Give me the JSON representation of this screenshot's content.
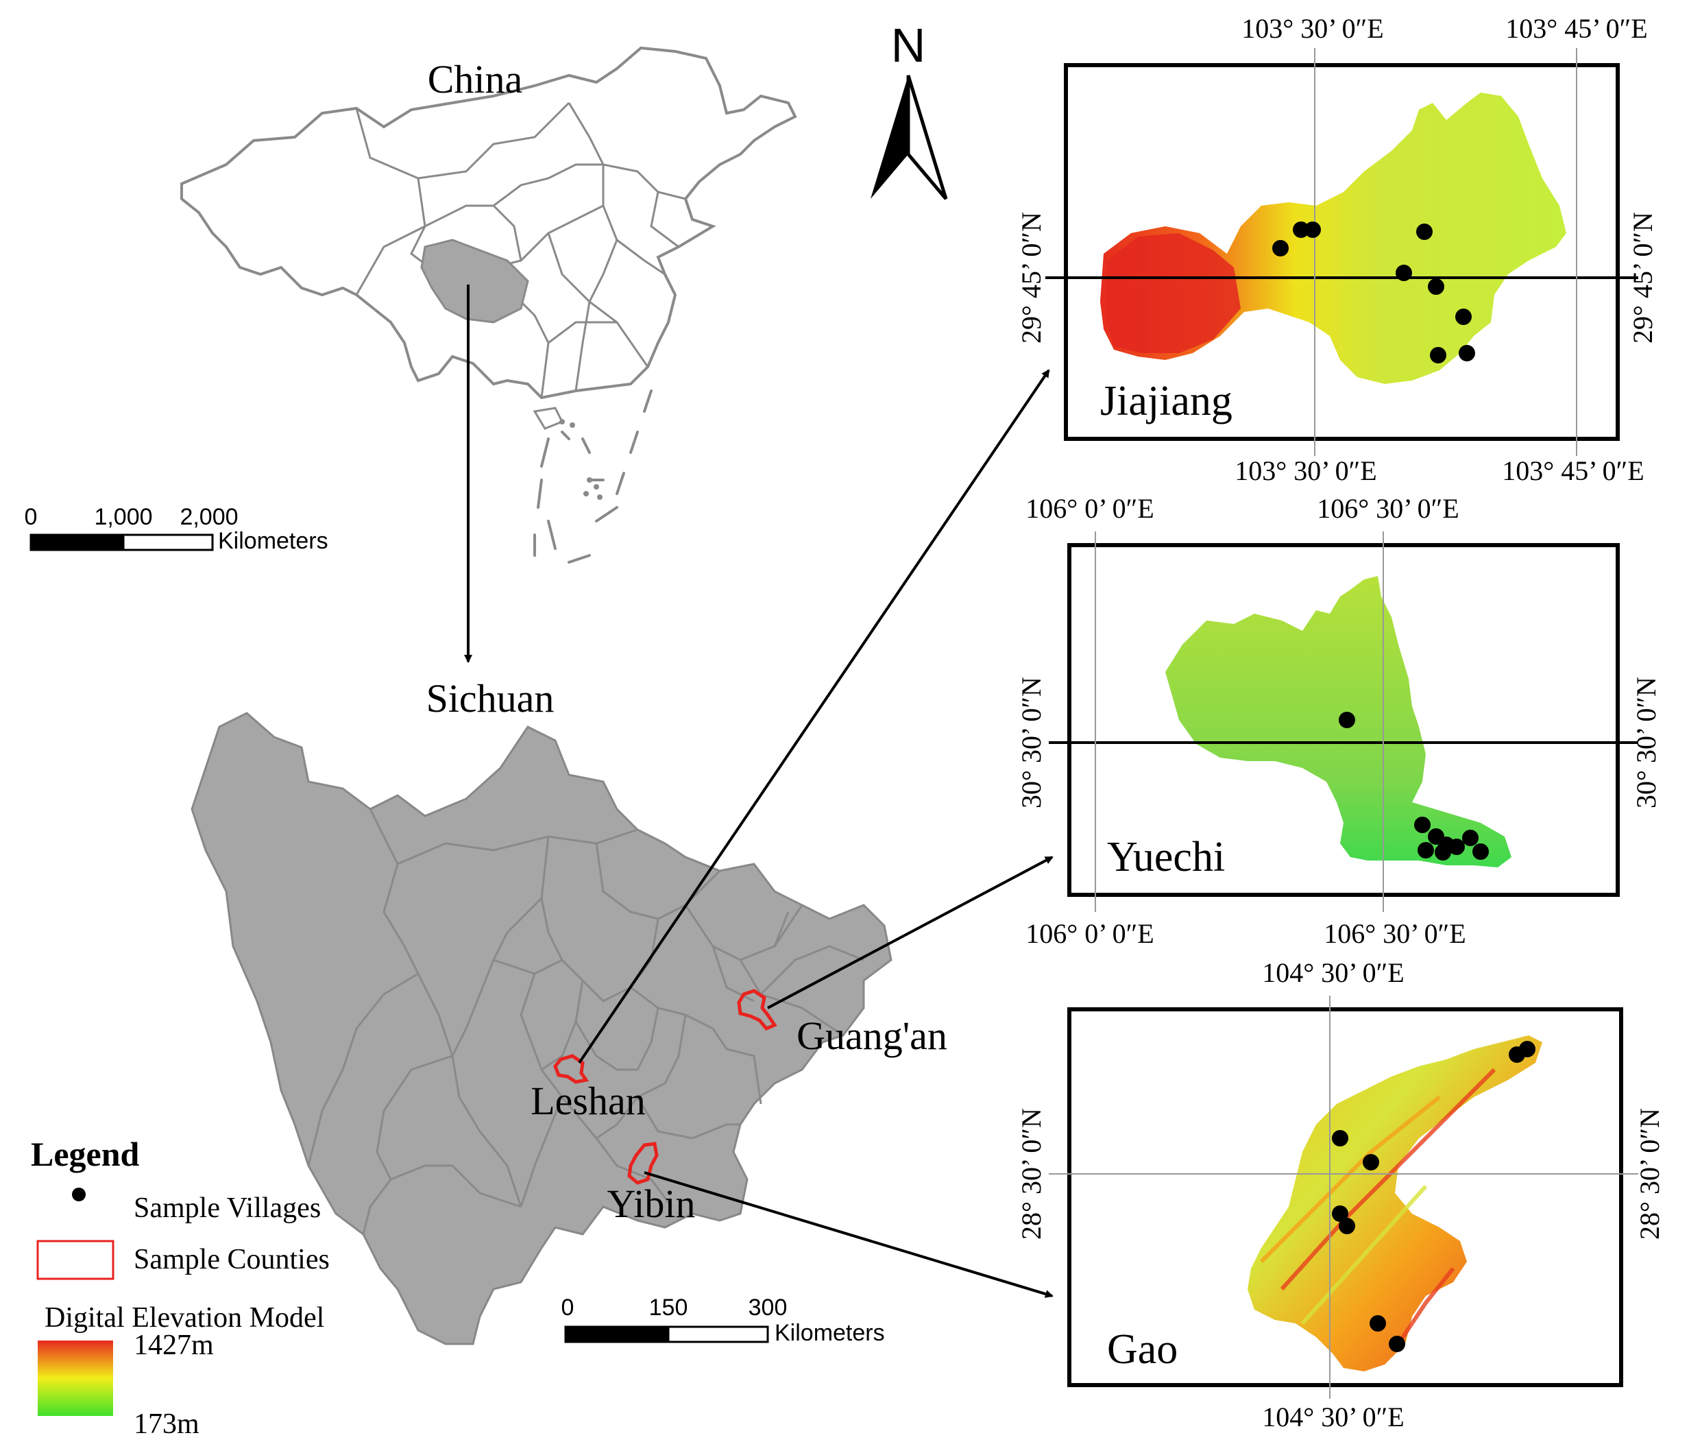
{
  "titles": {
    "china": "China",
    "sichuan": "Sichuan"
  },
  "north_arrow": {
    "label": "N"
  },
  "scale_bars": {
    "china": {
      "ticks": [
        "0",
        "1,000",
        "2,000"
      ],
      "unit": "Kilometers"
    },
    "sichuan": {
      "ticks": [
        "0",
        "150",
        "300"
      ],
      "unit": "Kilometers"
    }
  },
  "city_labels": [
    "Leshan",
    "Guang'an",
    "Yibin"
  ],
  "legend": {
    "title": "Legend",
    "villages": "Sample Villages",
    "counties": "Sample Counties",
    "dem_title": "Digital Elevation Model",
    "dem_high": "1427m",
    "dem_low": "173m"
  },
  "insets": [
    {
      "name": "Jiajiang",
      "top_lon_1": "103°  30’ 0″E",
      "top_lon_2": "103°  45’ 0″E",
      "bottom_lon_1": "103°  30’ 0″E",
      "bottom_lon_2": "103°  45’ 0″E",
      "lat": "29°  45’ 0″N"
    },
    {
      "name": "Yuechi",
      "top_lon_1": "106°  0’ 0″E",
      "top_lon_2": "106°  30’ 0″E",
      "bottom_lon_1": "106°  0’ 0″E",
      "bottom_lon_2": "106°  30’ 0″E",
      "lat": "30°  30’ 0″N"
    },
    {
      "name": "Gao",
      "top_lon_1": "104°  30’ 0″E",
      "bottom_lon_1": "104°  30’ 0″E",
      "lat": "28°  30’ 0″N"
    }
  ],
  "colors": {
    "province_fill": "#a6a6a6",
    "sample_county": "#e8231f",
    "dem_high": "#e62b1e",
    "dem_mid": "#f2ee1a",
    "dem_low": "#3fe02a"
  }
}
